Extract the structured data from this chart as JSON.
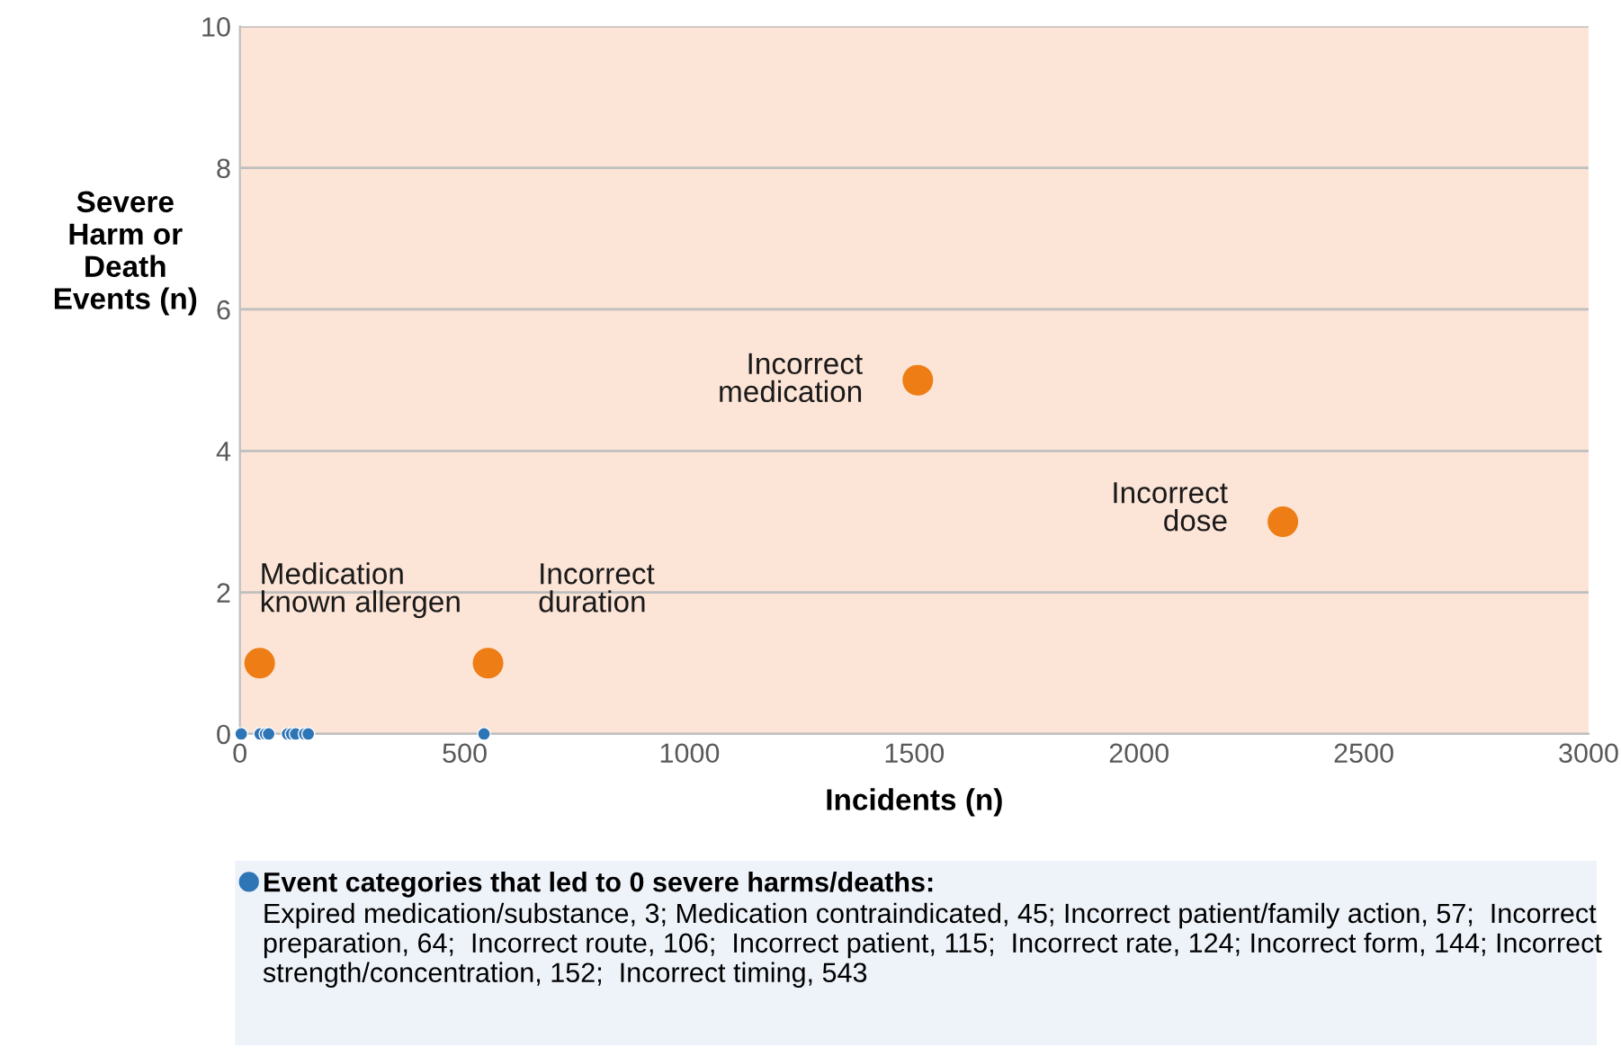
{
  "chart_data": {
    "type": "scatter",
    "xlabel": "Incidents (n)",
    "ylabel": "Severe\nHarm or\nDeath\nEvents (n)",
    "xlim": [
      0,
      3000
    ],
    "xticks": [
      0,
      500,
      1000,
      1500,
      2000,
      2500,
      3000
    ],
    "ylim": [
      0,
      10
    ],
    "yticks": [
      0,
      2,
      4,
      6,
      8,
      10
    ],
    "grid": "y",
    "legend": "bottom",
    "marker": "circle",
    "series": [
      {
        "name": "Event categories that led to 0 severe harms/deaths:",
        "color": "#2e75b6",
        "x": [
          3,
          45,
          57,
          64,
          106,
          115,
          124,
          144,
          152,
          543
        ],
        "values": [
          0,
          0,
          0,
          0,
          0,
          0,
          0,
          0,
          0,
          0
        ]
      },
      {
        "color": "#ed7d14",
        "x": [
          44,
          552,
          1508,
          2320
        ],
        "values": [
          1,
          1,
          5,
          3
        ]
      }
    ],
    "annotations": [
      {
        "text": "Medication\nknown allergen",
        "x": 44,
        "y": 1
      },
      {
        "text": "Incorrect\nduration",
        "x": 552,
        "y": 1
      },
      {
        "text": "Incorrect\nmedication",
        "x": 1508,
        "y": 5
      },
      {
        "text": "Incorrect\ndose",
        "x": 2320,
        "y": 3
      },
      "Expired medication/substance, 3; Medication contraindicated, 45; Incorrect patient/family action, 57;  Incorrect preparation, 64;  Incorrect route, 106;  Incorrect patient, 115;  Incorrect rate, 124; Incorrect form, 144; Incorrect strength/concentration, 152;  Incorrect timing, 543"
    ]
  }
}
